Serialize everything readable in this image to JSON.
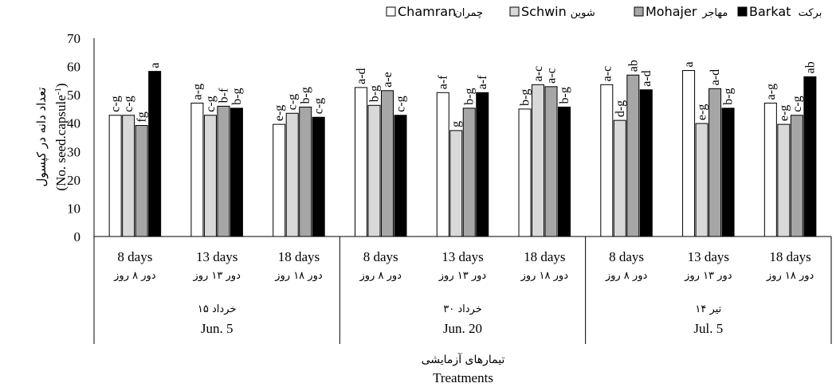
{
  "chart_data": {
    "type": "bar",
    "ylabel_fa": "تعداد دانه در کپسول",
    "ylabel_en": "(No. seed.capsule",
    "ylabel_sup": "-1",
    "ylabel_close": ")",
    "ylim": [
      0,
      70
    ],
    "yticks": [
      0,
      10,
      20,
      30,
      40,
      50,
      60,
      70
    ],
    "grid": false,
    "legend_position": "top-right",
    "xlabel_fa": "تیمارهای آزمایشی",
    "xlabel_en": "Treatments",
    "groups": [
      {
        "fa": "۱۵ خرداد",
        "en": "Jun. 5"
      },
      {
        "fa": "۳۰ خرداد",
        "en": "Jun. 20"
      },
      {
        "fa": "۱۴ تیر",
        "en": "Jul. 5"
      }
    ],
    "categories": [
      {
        "en": "8 days",
        "fa": "دور ۸ روز",
        "group": 0
      },
      {
        "en": "13 days",
        "fa": "دور ۱۳ روز",
        "group": 0
      },
      {
        "en": "18 days",
        "fa": "دور ۱۸ روز",
        "group": 0
      },
      {
        "en": "8 days",
        "fa": "دور ۸ روز",
        "group": 1
      },
      {
        "en": "13 days",
        "fa": "دور ۱۳ روز",
        "group": 1
      },
      {
        "en": "18 days",
        "fa": "دور ۱۸ روز",
        "group": 1
      },
      {
        "en": "8 days",
        "fa": "دور ۸ روز",
        "group": 2
      },
      {
        "en": "13 days",
        "fa": "دور ۱۳ روز",
        "group": 2
      },
      {
        "en": "18 days",
        "fa": "دور ۱۸ روز",
        "group": 2
      }
    ],
    "series": [
      {
        "name": "Chamran",
        "name_fa": "چمران",
        "color": "#ffffff",
        "values": [
          42.8,
          47.1,
          39.6,
          52.6,
          50.8,
          45.0,
          53.6,
          58.6,
          47.1
        ],
        "letters": [
          "c-g",
          "a-g",
          "e-g",
          "a-d",
          "a-f",
          "b-g",
          "a-c",
          "a",
          "a-g"
        ]
      },
      {
        "name": "Schwin",
        "name_fa": "شوین",
        "color": "#d9d9d9",
        "values": [
          42.8,
          42.8,
          43.5,
          46.3,
          37.4,
          53.6,
          41.0,
          39.9,
          39.6
        ],
        "letters": [
          "c-g",
          "c-g",
          "c-g",
          "b-g",
          "g",
          "a-c",
          "d-g",
          "e-g",
          "e-g"
        ]
      },
      {
        "name": "Mohajer",
        "name_fa": "مهاجر",
        "color": "#a6a6a6",
        "values": [
          39.2,
          46.0,
          45.7,
          51.5,
          45.3,
          52.9,
          57.0,
          52.2,
          42.8
        ],
        "letters": [
          "fg",
          "b-f",
          "b-g",
          "a-e",
          "b-g",
          "a-c",
          "ab",
          "a-d",
          "c-g"
        ]
      },
      {
        "name": "Barkat",
        "name_fa": "برکت",
        "color": "#000000",
        "values": [
          58.3,
          45.3,
          42.1,
          42.8,
          50.8,
          45.7,
          51.8,
          45.3,
          56.4
        ],
        "letters": [
          "a",
          "b-g",
          "c-g",
          "c-g",
          "a-f",
          "b-g",
          "a-d",
          "b-g",
          "ab"
        ]
      }
    ]
  }
}
